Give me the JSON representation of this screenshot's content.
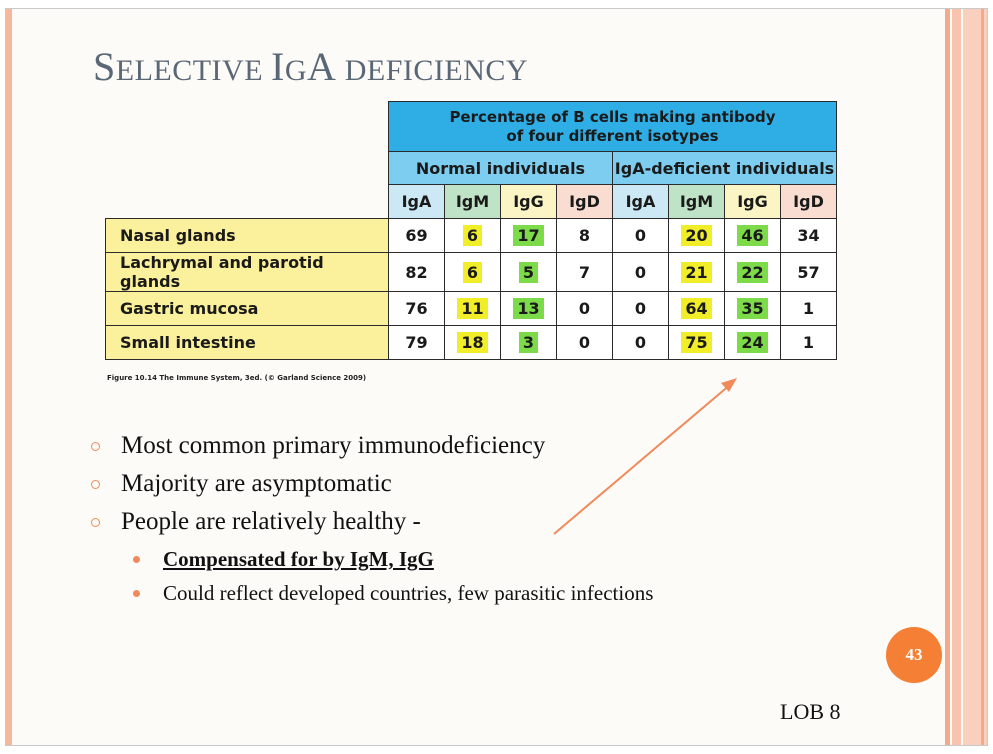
{
  "slide": {
    "title_parts": [
      "S",
      "ELECTIVE ",
      "I",
      "G",
      "A ",
      "DEFICIENCY"
    ],
    "table": {
      "header_main": [
        "Percentage of B cells making antibody",
        "of four different isotypes"
      ],
      "group_normal": "Normal individuals",
      "group_deficient": "IgA-deficient individuals",
      "isotypes": [
        "IgA",
        "IgM",
        "IgG",
        "IgD",
        "IgA",
        "IgM",
        "IgG",
        "IgD"
      ],
      "rows": [
        {
          "label": "Nasal glands",
          "values": [
            "69",
            "6",
            "17",
            "8",
            "0",
            "20",
            "46",
            "34"
          ]
        },
        {
          "label": "Lachrymal and parotid glands",
          "values": [
            "82",
            "6",
            "5",
            "7",
            "0",
            "21",
            "22",
            "57"
          ]
        },
        {
          "label": "Gastric mucosa",
          "values": [
            "76",
            "11",
            "13",
            "0",
            "0",
            "64",
            "35",
            "1"
          ]
        },
        {
          "label": "Small intestine",
          "values": [
            "79",
            "18",
            "3",
            "0",
            "0",
            "75",
            "24",
            "1"
          ]
        }
      ]
    },
    "caption": "Figure 10.14 The Immune System, 3ed. (© Garland Science 2009)",
    "bullets": [
      "Most common primary immunodeficiency",
      "Majority are asymptomatic",
      "People are relatively healthy -"
    ],
    "subbullets": [
      "Compensated for by IgM, IgG",
      "Could reflect developed countries, few parasitic infections"
    ],
    "page_number": "43",
    "footer": "LOB 8",
    "colors": {
      "accent": "#f47f35",
      "header_blue": "#2faee6",
      "header_light_blue": "#7ccdef",
      "row_label_yellow": "#fbf09b",
      "highlight_yellow": "#f1ee29",
      "highlight_green": "#7ddb4a",
      "title_gray": "#5a6776"
    }
  }
}
